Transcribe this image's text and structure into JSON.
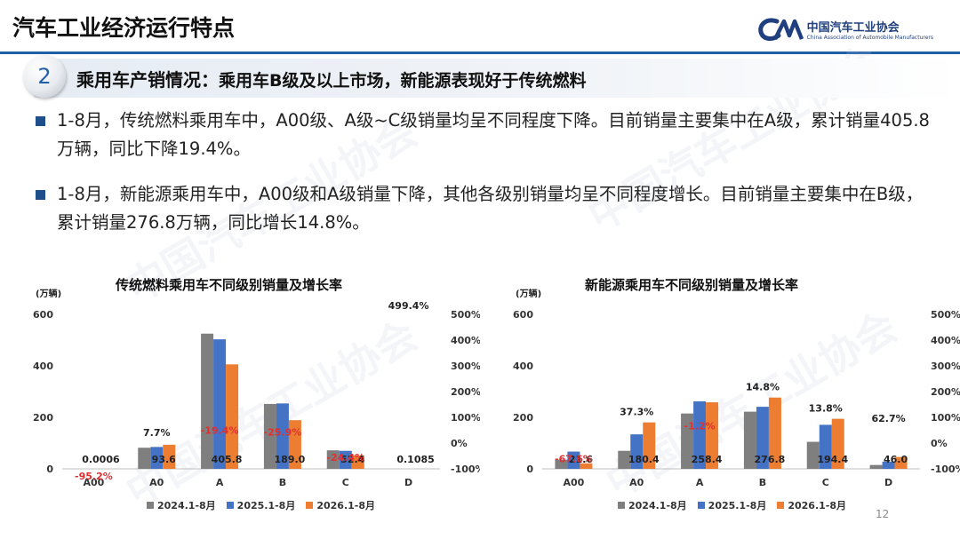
{
  "header": {
    "title": "汽车工业经济运行特点",
    "logo_cn": "中国汽车工业协会",
    "logo_en": "China Association of Automobile Manufacturers",
    "accent": "#1f5fa8"
  },
  "section": {
    "number": "2",
    "title": "乘用车产销情况：",
    "subtitle": "乘用车B级及以上市场，新能源表现好于传统燃料"
  },
  "bullets": [
    "1-8月，传统燃料乘用车中，A00级、A级~C级销量均呈不同程度下降。目前销量主要集中在A级，累计销量405.8万辆，同比下降19.4%。",
    "1-8月，新能源乘用车中，A00级和A级销量下降，其他各级别销量均呈不同程度增长。目前销量主要集中在B级，累计销量276.8万辆，同比增长14.8%。"
  ],
  "watermark": "中国汽车工业协会",
  "page_number": "12",
  "chart_data": [
    {
      "type": "bar",
      "title": "传统燃料乘用车不同级别销量及增长率",
      "ylabel": "(万辆)",
      "ylim": [
        0,
        600
      ],
      "yticks": [
        "0",
        "200",
        "400",
        "600"
      ],
      "y2lim": [
        -100,
        500
      ],
      "y2ticks": [
        "-100%",
        "0%",
        "100%",
        "200%",
        "300%",
        "400%",
        "500%"
      ],
      "categories": [
        "A00",
        "A0",
        "A",
        "B",
        "C",
        "D"
      ],
      "series": [
        {
          "name": "2024.1-8月",
          "color": "#7f7f7f",
          "values": [
            0,
            82,
            525,
            252,
            72,
            0
          ]
        },
        {
          "name": "2025.1-8月",
          "color": "#4472c4",
          "values": [
            0,
            85,
            503,
            254,
            70,
            0
          ]
        },
        {
          "name": "2026.1-8月",
          "color": "#ed7d31",
          "values": [
            0.0006,
            93.6,
            405.8,
            189.0,
            52.4,
            0.1085
          ]
        }
      ],
      "value_labels": [
        "0.0006",
        "93.6",
        "405.8",
        "189.0",
        "52.4",
        "0.1085"
      ],
      "growth_rates": [
        -95.2,
        7.7,
        -19.4,
        -25.9,
        -24.4,
        499.4
      ],
      "growth_labels": [
        "-95.2%",
        "7.7%",
        "-19.4%",
        "-25.9%",
        "-24.4%",
        "499.4%"
      ],
      "negative_color": "#e03030",
      "legend_position": "bottom"
    },
    {
      "type": "bar",
      "title": "新能源乘用车不同级别销量及增长率",
      "ylabel": "(万辆)",
      "ylim": [
        0,
        600
      ],
      "yticks": [
        "0",
        "200",
        "400",
        "600"
      ],
      "y2lim": [
        -100,
        500
      ],
      "y2ticks": [
        "-100%",
        "0%",
        "100%",
        "200%",
        "300%",
        "400%",
        "500%"
      ],
      "categories": [
        "A00",
        "A0",
        "A",
        "B",
        "C",
        "D"
      ],
      "series": [
        {
          "name": "2024.1-8月",
          "color": "#7f7f7f",
          "values": [
            36,
            70,
            215,
            222,
            105,
            15
          ]
        },
        {
          "name": "2025.1-8月",
          "color": "#4472c4",
          "values": [
            67,
            134,
            262,
            241,
            171,
            28
          ]
        },
        {
          "name": "2026.1-8月",
          "color": "#ed7d31",
          "values": [
            21.6,
            180.4,
            258.4,
            276.8,
            194.4,
            46.0
          ]
        }
      ],
      "value_labels": [
        "21.6",
        "180.4",
        "258.4",
        "276.8",
        "194.4",
        "46.0"
      ],
      "growth_rates": [
        -67.6,
        37.3,
        -1.2,
        14.8,
        13.8,
        62.7
      ],
      "growth_labels": [
        "-67.6%",
        "37.3%",
        "-1.2%",
        "14.8%",
        "13.8%",
        "62.7%"
      ],
      "negative_color": "#e03030",
      "legend_position": "bottom"
    }
  ]
}
